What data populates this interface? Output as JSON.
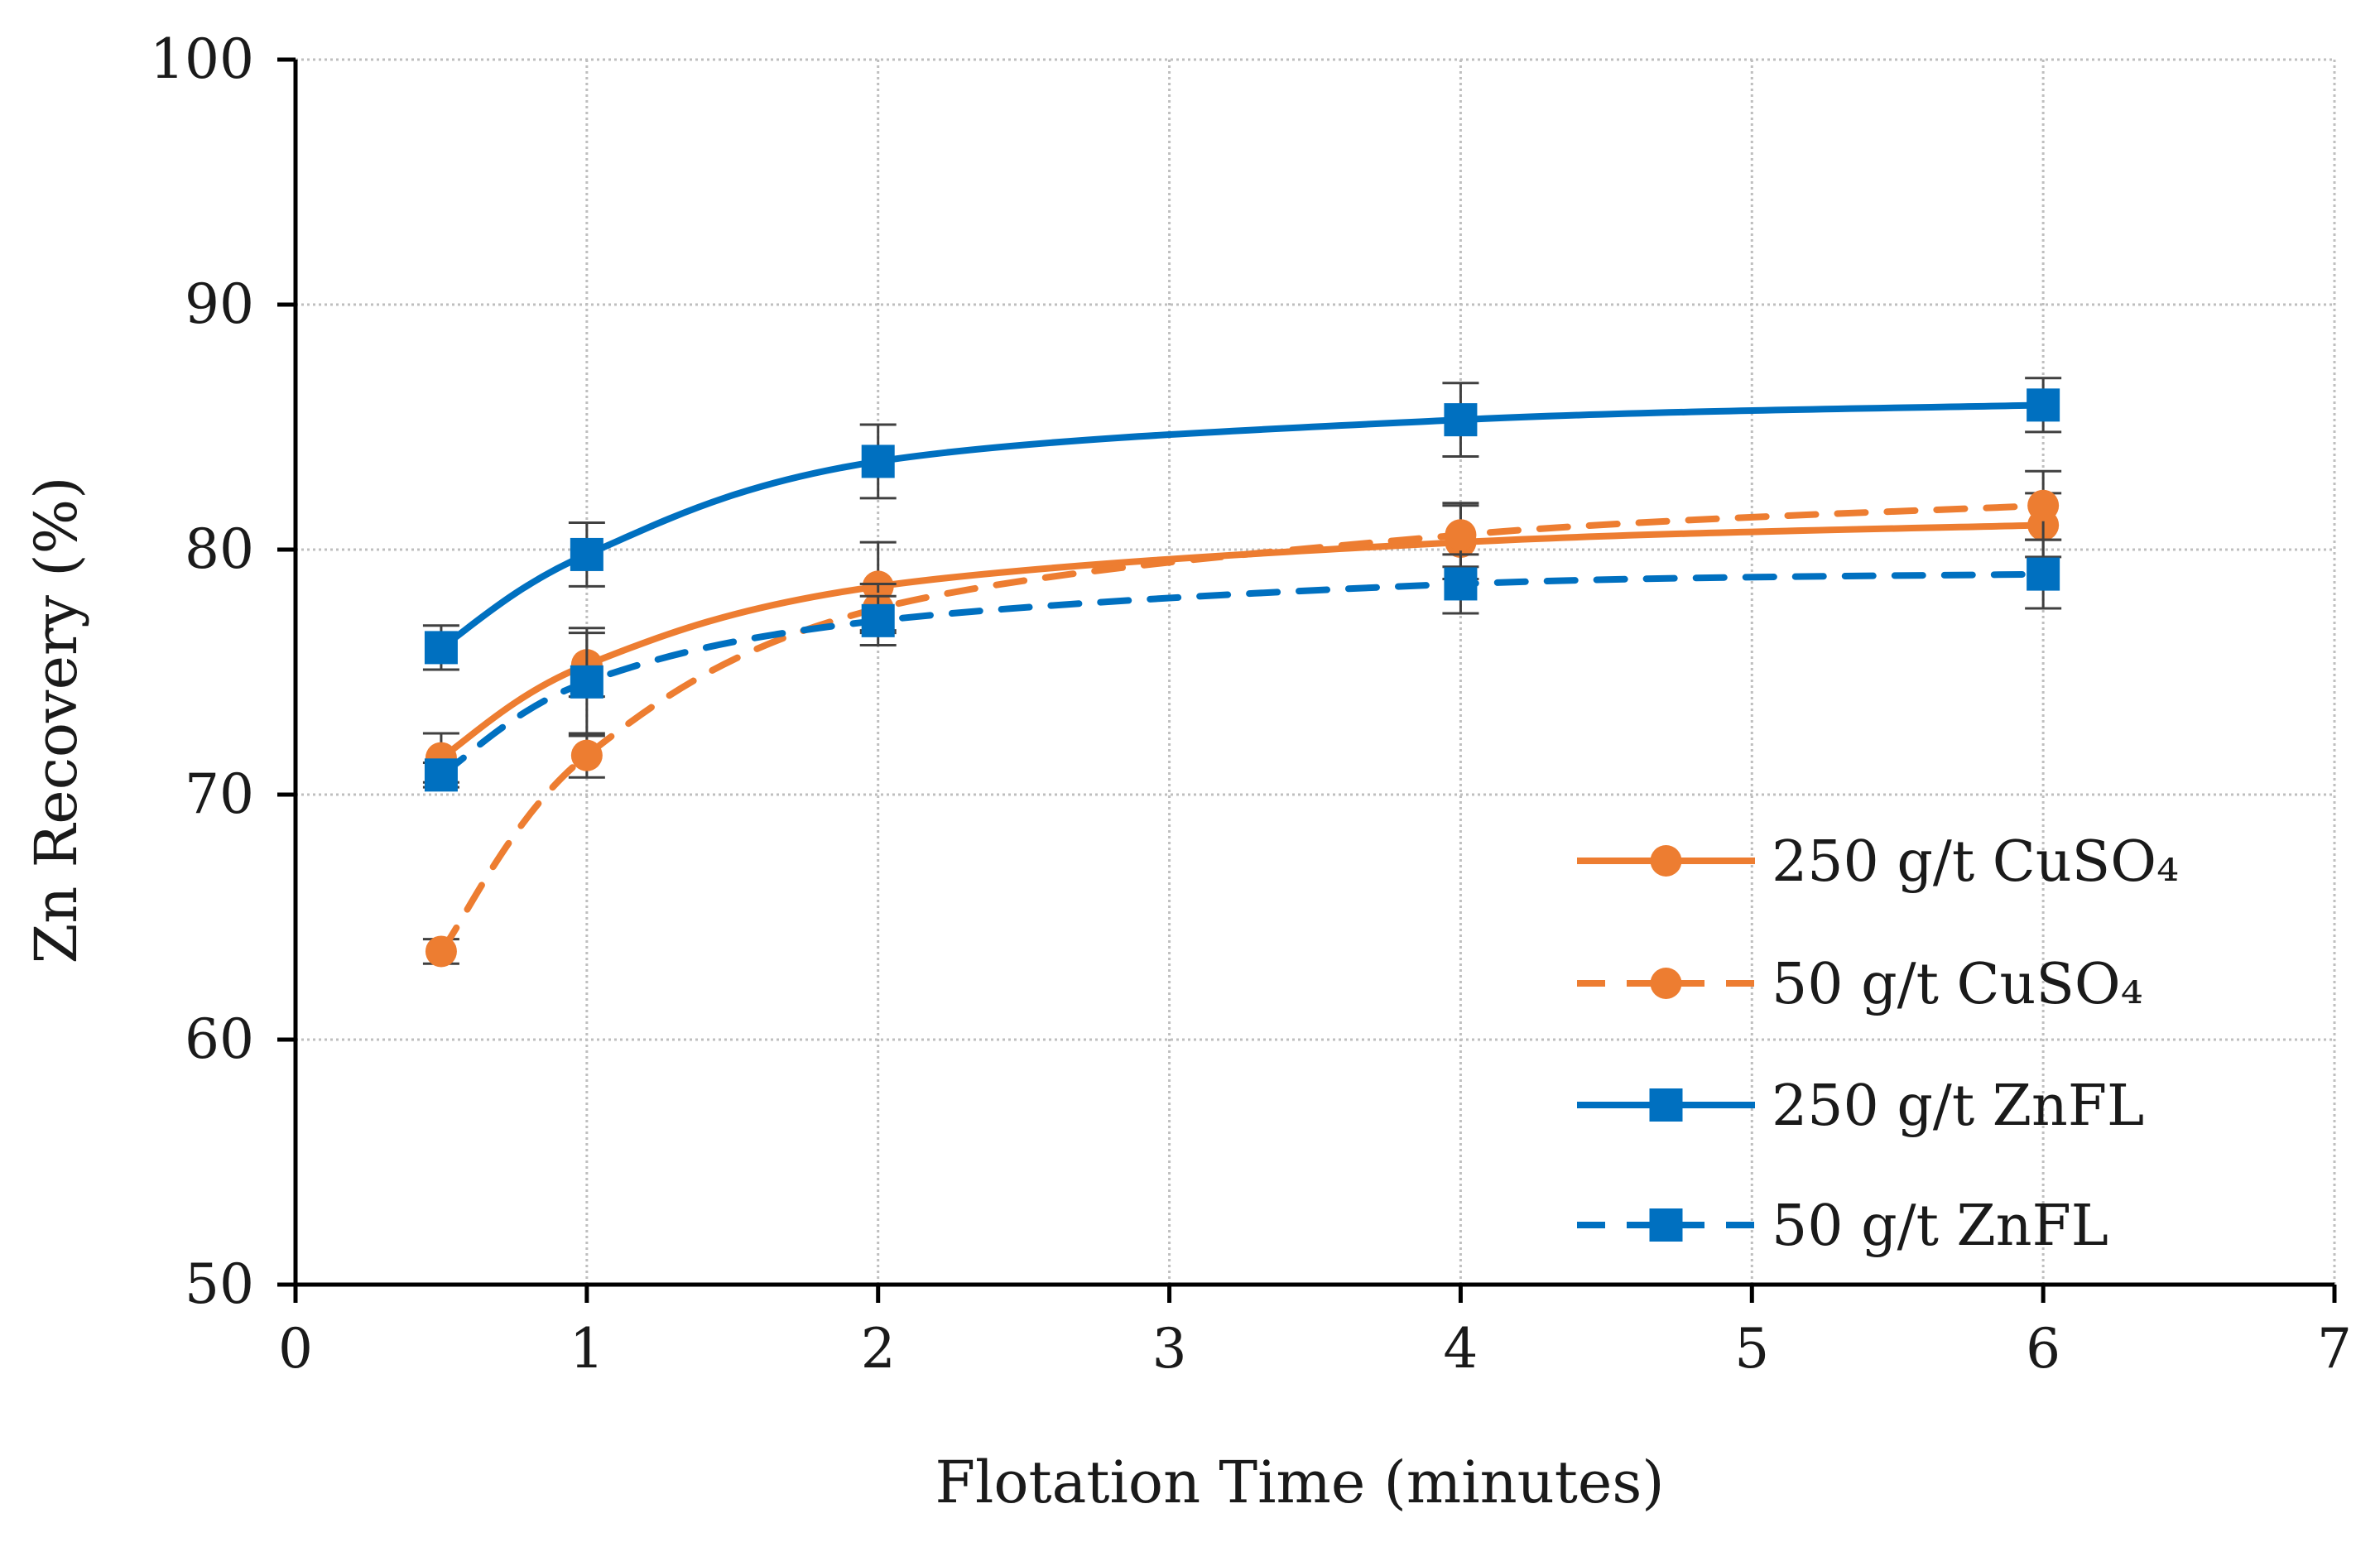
{
  "chart_data": {
    "type": "line",
    "title": "",
    "xlabel": "Flotation Time (minutes)",
    "ylabel": "Zn Recovery (%)",
    "xlim": [
      0,
      7
    ],
    "ylim": [
      50,
      100
    ],
    "xticks": [
      0,
      1,
      2,
      3,
      4,
      5,
      6,
      7
    ],
    "yticks": [
      50,
      60,
      70,
      80,
      90,
      100
    ],
    "grid": true,
    "legend_position": "bottom-right",
    "series": [
      {
        "name": "250 g/t CuSO₄",
        "color": "#ed7d31",
        "dashed": false,
        "marker": "circle",
        "x": [
          0.5,
          1,
          2,
          4,
          6
        ],
        "y": [
          71.5,
          75.3,
          78.5,
          80.3,
          81.0
        ],
        "err": [
          1.0,
          1.3,
          1.8,
          1.5,
          1.3
        ]
      },
      {
        "name": "50 g/t CuSO₄",
        "color": "#ed7d31",
        "dashed": true,
        "marker": "circle",
        "x": [
          0.5,
          1,
          2,
          4,
          6
        ],
        "y": [
          63.6,
          71.6,
          77.6,
          80.6,
          81.8
        ],
        "err": [
          0.5,
          0.9,
          1.0,
          1.3,
          1.4
        ]
      },
      {
        "name": "250 g/t ZnFL",
        "color": "#0070c0",
        "dashed": false,
        "marker": "square",
        "x": [
          0.5,
          1,
          2,
          4,
          6
        ],
        "y": [
          76.0,
          79.8,
          83.6,
          85.3,
          85.9
        ],
        "err": [
          0.9,
          1.3,
          1.5,
          1.5,
          1.1
        ]
      },
      {
        "name": "50 g/t ZnFL",
        "color": "#0070c0",
        "dashed": true,
        "marker": "square",
        "x": [
          0.5,
          1,
          2,
          4,
          6
        ],
        "y": [
          70.8,
          74.6,
          77.1,
          78.6,
          79.0
        ],
        "err": [
          0.5,
          2.2,
          1.0,
          1.2,
          1.4
        ]
      }
    ]
  }
}
